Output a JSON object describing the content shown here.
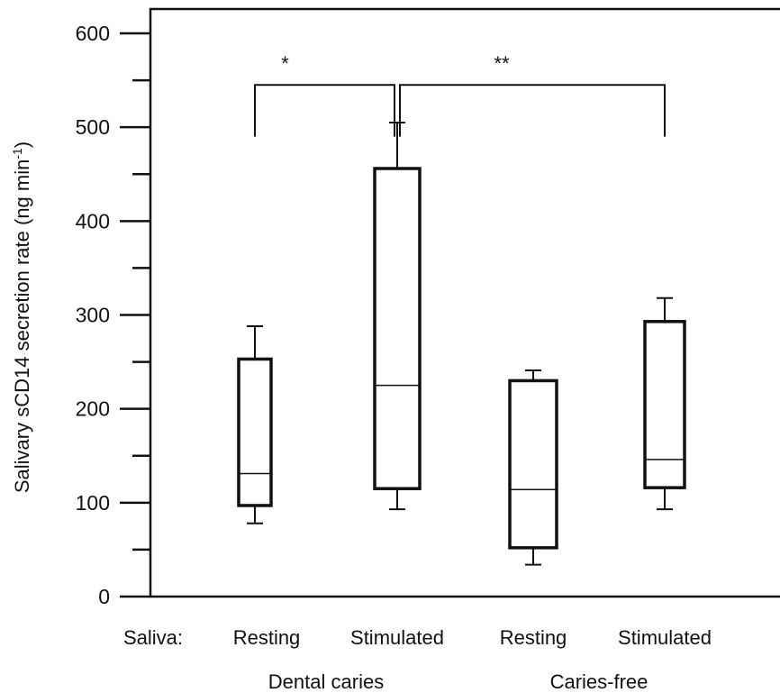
{
  "chart_data": {
    "type": "box",
    "ylabel": "Salivary sCD14 secretion rate (ng min",
    "ylabel_sup": "-1",
    "ylabel_close": ")",
    "ylim": [
      0,
      600
    ],
    "yticks": [
      0,
      100,
      200,
      300,
      400,
      500,
      600
    ],
    "minor_yticks": [
      50,
      150,
      250,
      350,
      450,
      550
    ],
    "x_prefix_label": "Saliva:",
    "boxes": [
      {
        "group": "Dental caries",
        "label": "Resting",
        "whisker_low": 78,
        "q1": 97,
        "median": 131,
        "q3": 253,
        "whisker_high": 288
      },
      {
        "group": "Dental caries",
        "label": "Stimulated",
        "whisker_low": 93,
        "q1": 115,
        "median": 225,
        "q3": 456,
        "whisker_high": 505
      },
      {
        "group": "Caries-free",
        "label": "Resting",
        "whisker_low": 34,
        "q1": 52,
        "median": 114,
        "q3": 230,
        "whisker_high": 241
      },
      {
        "group": "Caries-free",
        "label": "Stimulated",
        "whisker_low": 93,
        "q1": 116,
        "median": 146,
        "q3": 293,
        "whisker_high": 318
      }
    ],
    "groups": [
      "Dental caries",
      "Caries-free"
    ],
    "significance": [
      {
        "from": 0,
        "to": 1,
        "label": "*",
        "y": 545
      },
      {
        "from": 1,
        "to": 3,
        "label": "**",
        "y": 545
      }
    ]
  }
}
